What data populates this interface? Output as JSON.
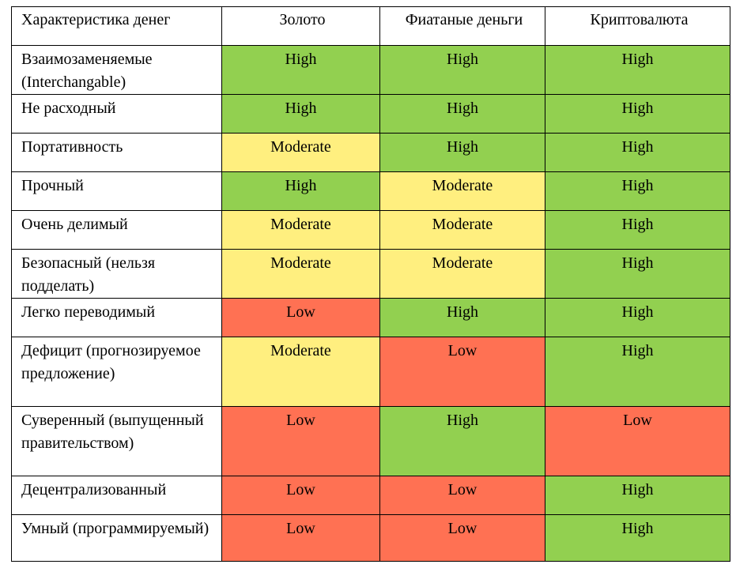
{
  "table": {
    "headers": [
      "Характеристика денег",
      "Золото",
      "Фиатаные деньги",
      "Криптовалюта"
    ],
    "rows": [
      {
        "label": "Взаимозаменяемые (Interchangable)",
        "values": [
          "High",
          "High",
          "High"
        ]
      },
      {
        "label": "Не расходный",
        "values": [
          "High",
          "High",
          "High"
        ]
      },
      {
        "label": "Портативность",
        "values": [
          "Moderate",
          "High",
          "High"
        ]
      },
      {
        "label": "Прочный",
        "values": [
          "High",
          "Moderate",
          "High"
        ]
      },
      {
        "label": "Очень делимый",
        "values": [
          "Moderate",
          "Moderate",
          "High"
        ]
      },
      {
        "label": "Безопасный (нельзя подделать)",
        "values": [
          "Moderate",
          "Moderate",
          "High"
        ]
      },
      {
        "label": "Легко переводимый",
        "values": [
          "Low",
          "High",
          "High"
        ]
      },
      {
        "label": "Дефицит (прогнозируемое предложение)",
        "values": [
          "Moderate",
          "Low",
          "High"
        ]
      },
      {
        "label": "Суверенный (выпущенный правительством)",
        "values": [
          "Low",
          "High",
          "Low"
        ]
      },
      {
        "label": "Децентрализованный",
        "values": [
          "Low",
          "Low",
          "High"
        ]
      },
      {
        "label": "Умный (программируемый)",
        "values": [
          "Low",
          "Low",
          "High"
        ]
      }
    ]
  },
  "level_colors": {
    "High": "#92d050",
    "Moderate": "#ffef7f",
    "Low": "#ff7153"
  }
}
